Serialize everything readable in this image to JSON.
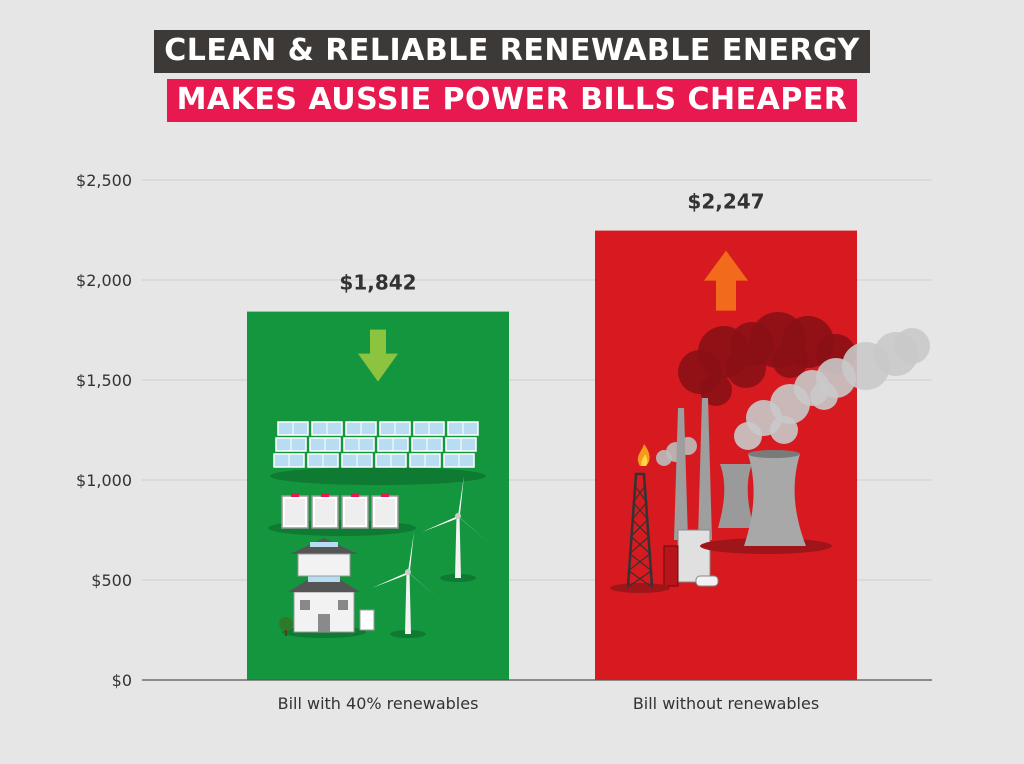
{
  "title": {
    "line1": "CLEAN & RELIABLE RENEWABLE ENERGY",
    "line2": "MAKES AUSSIE POWER BILLS CHEAPER"
  },
  "colors": {
    "background": "#e6e6e6",
    "title_line1_bg": "#3d3937",
    "title_line2_bg": "#e8194f",
    "bar_renewables": "#14963e",
    "bar_without": "#d71a1f",
    "arrow_down": "#8cc43f",
    "arrow_up": "#f26a1b",
    "grid": "#cfcfcf",
    "axis": "#555555"
  },
  "chart_data": {
    "type": "bar",
    "categories": [
      "Bill with 40% renewables",
      "Bill without renewables"
    ],
    "values": [
      1842,
      2247
    ],
    "value_labels": [
      "$1,842",
      "$2,247"
    ],
    "ylim": [
      0,
      2500
    ],
    "yticks": [
      0,
      500,
      1000,
      1500,
      2000,
      2500
    ],
    "ytick_labels": [
      "$0",
      "$500",
      "$1,000",
      "$1,500",
      "$2,000",
      "$2,500"
    ],
    "xlabel": "",
    "ylabel": "",
    "grid": true,
    "legend": "none",
    "bar_icons": [
      [
        "down-arrow-icon",
        "solar-panel-icon",
        "battery-icon",
        "wind-turbine-icon",
        "house-icon"
      ],
      [
        "up-arrow-icon",
        "oil-derrick-icon",
        "smokestack-icon",
        "cooling-tower-icon",
        "smoke-icon"
      ]
    ]
  }
}
